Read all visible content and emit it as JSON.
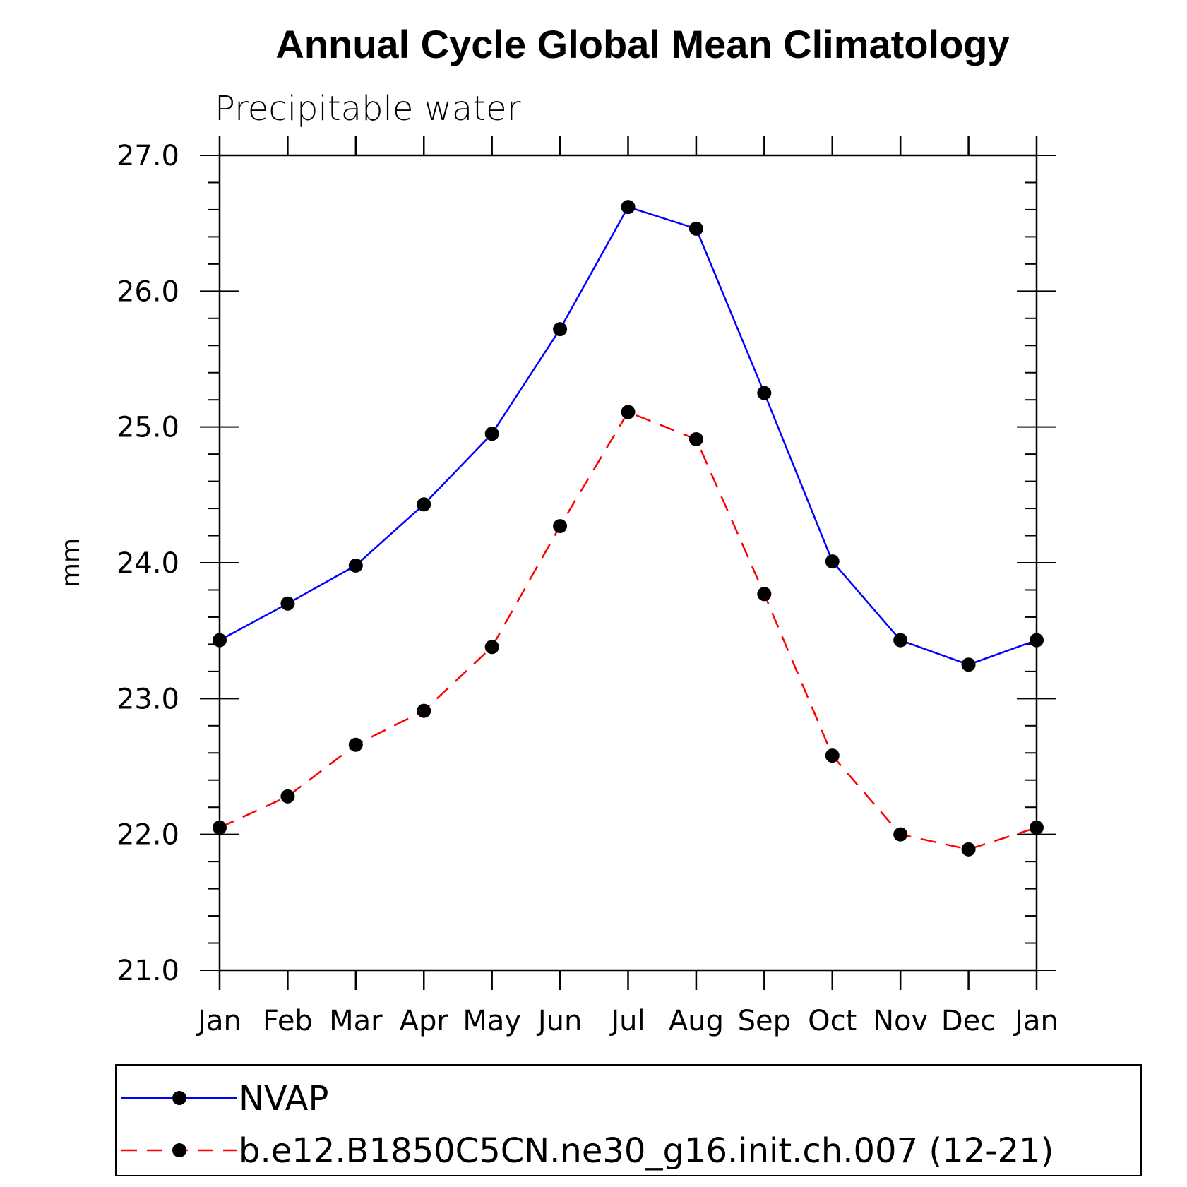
{
  "chart_data": {
    "type": "line",
    "title": "Annual Cycle Global Mean Climatology",
    "subtitle": "Precipitable water",
    "xlabel": "",
    "ylabel": "mm",
    "categories": [
      "Jan",
      "Feb",
      "Mar",
      "Apr",
      "May",
      "Jun",
      "Jul",
      "Aug",
      "Sep",
      "Oct",
      "Nov",
      "Dec",
      "Jan"
    ],
    "ylim": [
      21.0,
      27.0
    ],
    "yticks": [
      "21.0",
      "22.0",
      "23.0",
      "24.0",
      "25.0",
      "26.0",
      "27.0"
    ],
    "grid": false,
    "legend_position": "bottom",
    "series": [
      {
        "name": "NVAP",
        "color": "#0000ff",
        "line_style": "solid",
        "marker": "filled-circle",
        "values": [
          23.43,
          23.7,
          23.98,
          24.43,
          24.95,
          25.72,
          26.62,
          26.46,
          25.25,
          24.01,
          23.43,
          23.25,
          23.43
        ]
      },
      {
        "name": "b.e12.B1850C5CN.ne30_g16.init.ch.007 (12-21)",
        "color": "#ff0000",
        "line_style": "dashed",
        "marker": "filled-circle",
        "values": [
          22.05,
          22.28,
          22.66,
          22.91,
          23.38,
          24.27,
          25.11,
          24.91,
          23.77,
          22.58,
          22.0,
          21.89,
          22.05
        ]
      }
    ]
  }
}
